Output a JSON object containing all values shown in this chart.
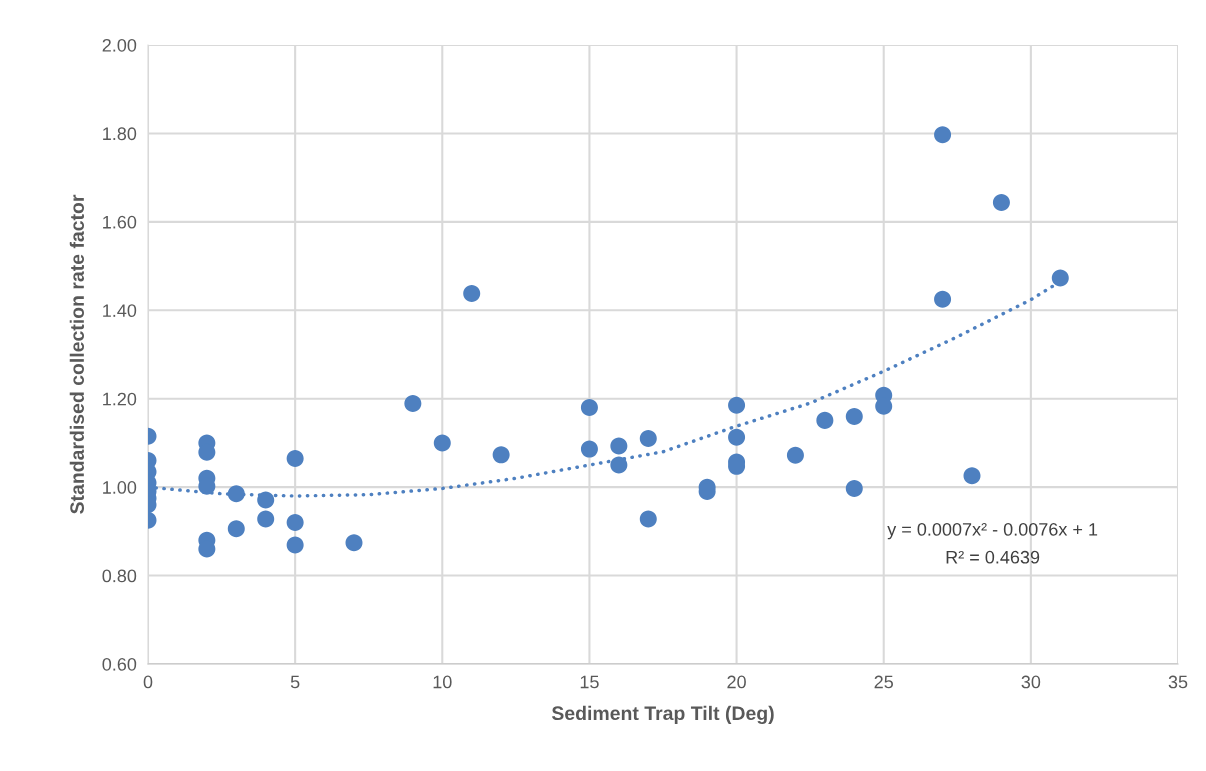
{
  "chart_data": {
    "type": "scatter",
    "xlabel": "Sediment Trap Tilt (Deg)",
    "ylabel": "Standardised collection rate factor",
    "xlim": [
      0,
      35
    ],
    "xticks": [
      0,
      5,
      10,
      15,
      20,
      25,
      30,
      35
    ],
    "ylim": [
      0.6,
      2.0
    ],
    "yticks": [
      {
        "value": 0.6,
        "label": "0.60"
      },
      {
        "value": 0.8,
        "label": "0.80"
      },
      {
        "value": 1.0,
        "label": "1.00"
      },
      {
        "value": 1.2,
        "label": "1.20"
      },
      {
        "value": 1.4,
        "label": "1.40"
      },
      {
        "value": 1.6,
        "label": "1.60"
      },
      {
        "value": 1.8,
        "label": "1.80"
      },
      {
        "value": 2.0,
        "label": "2.00"
      }
    ],
    "grid": true,
    "marker": "circle",
    "series": [
      {
        "color": "#4e80c0",
        "x": [
          0,
          0,
          0,
          0,
          0,
          0,
          0,
          0,
          2,
          2,
          2,
          2,
          2,
          2,
          3,
          3,
          4,
          4,
          5,
          5,
          5,
          7,
          9,
          10,
          11,
          12,
          15,
          15,
          16,
          16,
          17,
          17,
          19,
          19,
          20,
          20,
          20,
          20,
          22,
          23,
          24,
          24,
          25,
          25,
          27,
          27,
          28,
          29,
          31
        ],
        "values": [
          1.115,
          1.06,
          1.035,
          1.01,
          0.99,
          0.975,
          0.96,
          0.925,
          1.1,
          1.079,
          1.02,
          1.002,
          0.88,
          0.86,
          0.985,
          0.906,
          0.971,
          0.928,
          1.065,
          0.92,
          0.869,
          0.874,
          1.189,
          1.1,
          1.438,
          1.073,
          1.18,
          1.086,
          1.093,
          1.05,
          1.11,
          0.928,
          1.0,
          0.99,
          1.185,
          1.113,
          1.057,
          1.047,
          1.072,
          1.151,
          1.16,
          0.997,
          1.208,
          1.183,
          1.797,
          1.425,
          1.026,
          1.644,
          1.473
        ]
      },
      {
        "type": "line",
        "color": "#4e80c0",
        "line_style": "dotted",
        "marker": "none",
        "x": [
          0,
          2.5,
          5,
          7.5,
          10,
          12.5,
          15,
          17.5,
          20,
          22.5,
          25,
          27.5,
          30,
          31
        ],
        "values": [
          1.0,
          0.985,
          0.98,
          0.983,
          0.997,
          1.02,
          1.05,
          1.08,
          1.138,
          1.19,
          1.262,
          1.34,
          1.424,
          1.465
        ]
      }
    ],
    "annotations": [
      "y = 0.0007x² - 0.0076x + 1",
      "R² = 0.4639"
    ]
  }
}
